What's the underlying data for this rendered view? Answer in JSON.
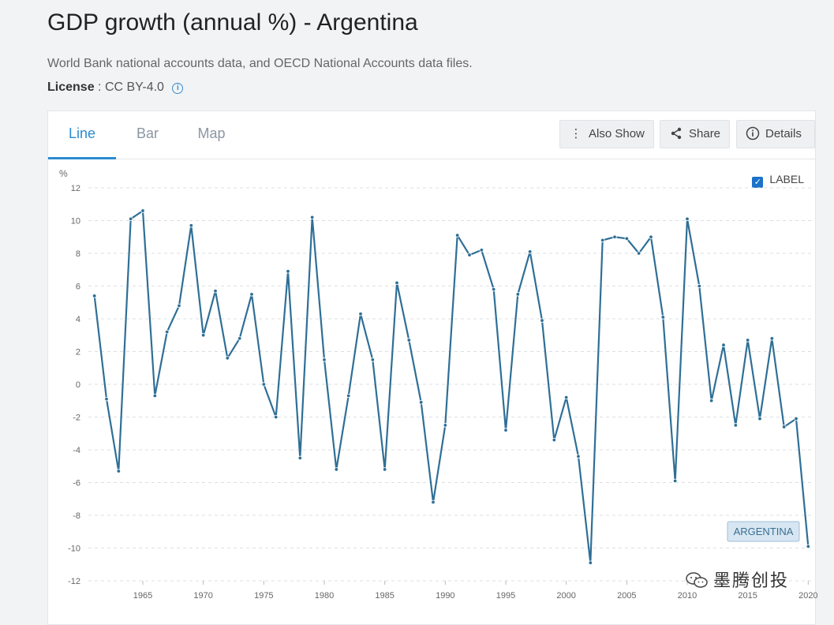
{
  "header": {
    "title": "GDP growth (annual %) - Argentina",
    "source": "World Bank national accounts data, and OECD National Accounts data files.",
    "license_label": "License",
    "license_value": ": CC BY-4.0",
    "info_icon": "info-icon"
  },
  "tabs": [
    {
      "label": "Line",
      "active": true
    },
    {
      "label": "Bar",
      "active": false
    },
    {
      "label": "Map",
      "active": false
    }
  ],
  "toolbar": {
    "also_show_label": "Also Show",
    "share_label": "Share",
    "details_label": "Details"
  },
  "label_toggle": {
    "label": "LABEL",
    "checked": true
  },
  "watermark": "墨腾创投",
  "colors": {
    "line": "#2f6f96",
    "accent": "#2c8bd0",
    "label_bg": "#d7e6f2"
  },
  "chart_data": {
    "type": "line",
    "ylabel": "%",
    "ylim": [
      -12,
      12
    ],
    "yticks": [
      12,
      10,
      8,
      6,
      4,
      2,
      0,
      -2,
      -4,
      -6,
      -8,
      -10,
      -12
    ],
    "xlim": [
      1960.5,
      2020.5
    ],
    "xticks": [
      1965,
      1970,
      1975,
      1980,
      1985,
      1990,
      1995,
      2000,
      2005,
      2010,
      2015,
      2020
    ],
    "series": [
      {
        "name": "ARGENTINA",
        "x": [
          1961,
          1962,
          1963,
          1964,
          1965,
          1966,
          1967,
          1968,
          1969,
          1970,
          1971,
          1972,
          1973,
          1974,
          1975,
          1976,
          1977,
          1978,
          1979,
          1980,
          1981,
          1982,
          1983,
          1984,
          1985,
          1986,
          1987,
          1988,
          1989,
          1990,
          1991,
          1992,
          1993,
          1994,
          1995,
          1996,
          1997,
          1998,
          1999,
          2000,
          2001,
          2002,
          2003,
          2004,
          2005,
          2006,
          2007,
          2008,
          2009,
          2010,
          2011,
          2012,
          2013,
          2014,
          2015,
          2016,
          2017,
          2018,
          2019,
          2020
        ],
        "values": [
          5.4,
          -0.9,
          -5.3,
          10.1,
          10.6,
          -0.7,
          3.2,
          4.8,
          9.7,
          3.0,
          5.7,
          1.6,
          2.8,
          5.5,
          0.0,
          -2.0,
          6.9,
          -4.5,
          10.2,
          1.5,
          -5.2,
          -0.7,
          4.3,
          1.5,
          -5.2,
          6.2,
          2.7,
          -1.1,
          -7.2,
          -2.5,
          9.1,
          7.9,
          8.2,
          5.8,
          -2.8,
          5.5,
          8.1,
          3.9,
          -3.4,
          -0.8,
          -4.4,
          -10.9,
          8.8,
          9.0,
          8.9,
          8.0,
          9.0,
          4.1,
          -5.9,
          10.1,
          6.0,
          -1.0,
          2.4,
          -2.5,
          2.7,
          -2.1,
          2.8,
          -2.6,
          -2.1,
          -9.9
        ]
      }
    ],
    "end_label": "ARGENTINA",
    "grid": true
  }
}
